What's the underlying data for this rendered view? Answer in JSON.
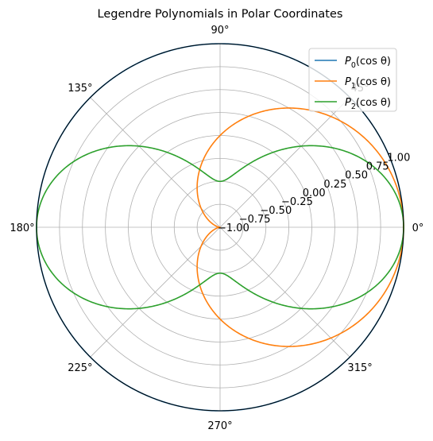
{
  "chart_data": {
    "type": "line",
    "projection": "polar",
    "title": "Legendre Polynomials in Polar Coordinates",
    "rlim": [
      -1.0,
      1.0
    ],
    "radial_ticks": [
      -1.0,
      -0.75,
      -0.5,
      -0.25,
      0.0,
      0.25,
      0.5,
      0.75,
      1.0
    ],
    "radial_tick_labels": [
      "−1.00",
      "−0.75",
      "−0.50",
      "−0.25",
      "0.00",
      "0.25",
      "0.50",
      "0.75",
      "1.00"
    ],
    "angle_ticks_deg": [
      0,
      45,
      90,
      135,
      180,
      225,
      270,
      315
    ],
    "angle_tick_labels": [
      "0°",
      "45°",
      "90°",
      "135°",
      "180°",
      "225°",
      "270°",
      "315°"
    ],
    "grid": true,
    "legend_position": "upper-right",
    "series": [
      {
        "name": "P0(cos θ)",
        "formula": "1",
        "color": "#1f77b4"
      },
      {
        "name": "P1(cos θ)",
        "formula": "cos θ",
        "color": "#ff7f0e"
      },
      {
        "name": "P2(cos θ)",
        "formula": "(3cos²θ − 1)/2",
        "color": "#2ca02c"
      }
    ],
    "legend": [
      {
        "base": "P",
        "sub": "0",
        "arg": "(cos θ)"
      },
      {
        "base": "P",
        "sub": "1",
        "arg": "(cos θ)"
      },
      {
        "base": "P",
        "sub": "2",
        "arg": "(cos θ)"
      }
    ]
  }
}
